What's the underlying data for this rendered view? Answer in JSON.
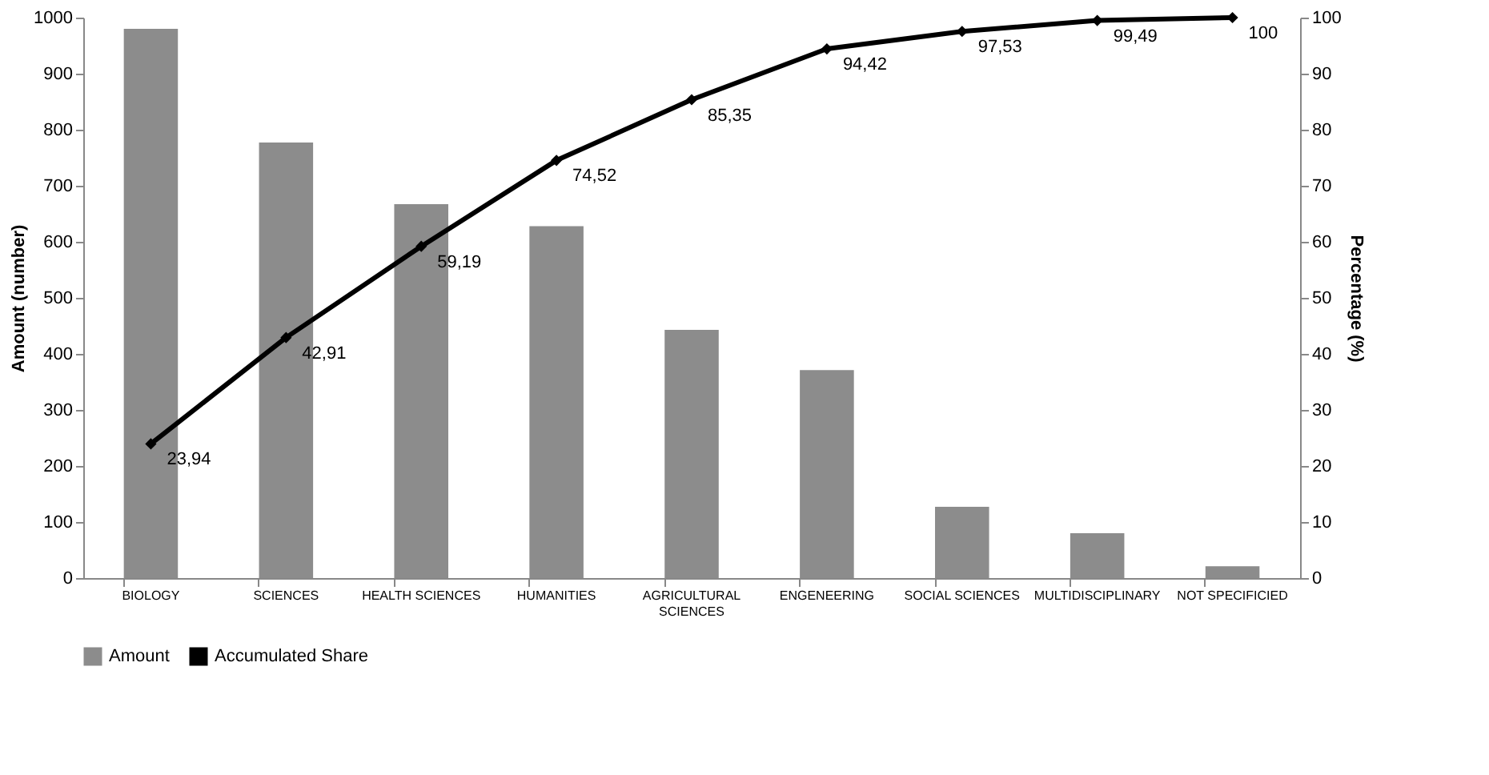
{
  "chart_data": {
    "type": "bar",
    "categories": [
      "BIOLOGY",
      "SCIENCES",
      "HEALTH SCIENCES",
      "HUMANITIES",
      "AGRICULTURAL SCIENCES",
      "ENGENEERING",
      "SOCIAL SCIENCES",
      "MULTIDISCIPLINARY",
      "NOT SPECIFICIED"
    ],
    "series": [
      {
        "name": "Amount",
        "color": "#8c8c8c",
        "values": [
          980,
          777,
          667,
          628,
          443,
          371,
          127,
          80,
          21
        ]
      },
      {
        "name": "Accumulated Share",
        "type": "line",
        "axis": "y2",
        "color": "#000000",
        "marker": "diamond",
        "values": [
          23.94,
          42.91,
          59.19,
          74.52,
          85.35,
          94.42,
          97.53,
          99.49,
          100
        ],
        "value_labels": [
          "23,94",
          "42,91",
          "59,19",
          "74,52",
          "85,35",
          "94,42",
          "97,53",
          "99,49",
          "100"
        ]
      }
    ],
    "ylabel": "Amount (number)",
    "y2label": "Percentage (%)",
    "ylim": [
      0,
      1000
    ],
    "yticks": [
      0,
      100,
      200,
      300,
      400,
      500,
      600,
      700,
      800,
      900,
      1000
    ],
    "y2lim": [
      0,
      100
    ],
    "y2ticks": [
      0,
      10,
      20,
      30,
      40,
      50,
      60,
      70,
      80,
      90,
      100
    ],
    "grid": false,
    "legend": "bottom"
  }
}
